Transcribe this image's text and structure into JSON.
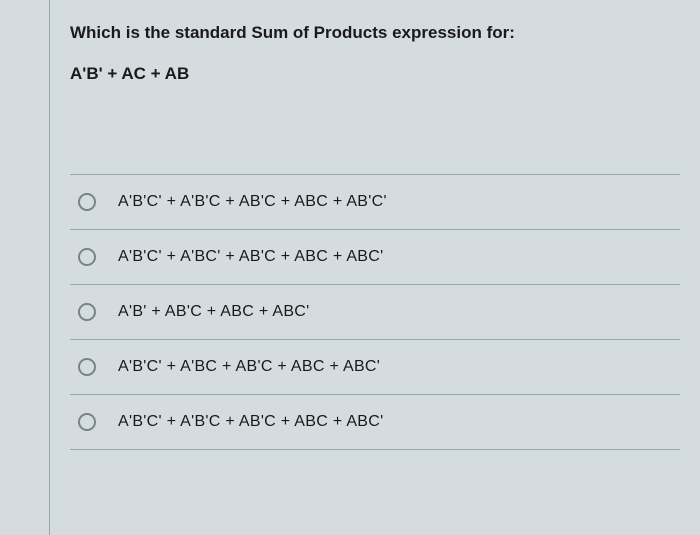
{
  "question": {
    "prompt": "Which is the standard Sum of Products expression for:",
    "expression": "A'B' + AC + AB"
  },
  "options": [
    {
      "label": "A'B'C' + A'B'C + AB'C + ABC + AB'C'"
    },
    {
      "label": "A'B'C' + A'BC' + AB'C + ABC + ABC'"
    },
    {
      "label": "A'B' + AB'C + ABC + ABC'"
    },
    {
      "label": "A'B'C' + A'BC + AB'C + ABC + ABC'"
    },
    {
      "label": "A'B'C' + A'B'C + AB'C + ABC + ABC'"
    }
  ],
  "colors": {
    "background": "#d5dce0",
    "border": "#9aa5aa",
    "text": "#1a1a1a",
    "radio_border": "#7a8388"
  }
}
